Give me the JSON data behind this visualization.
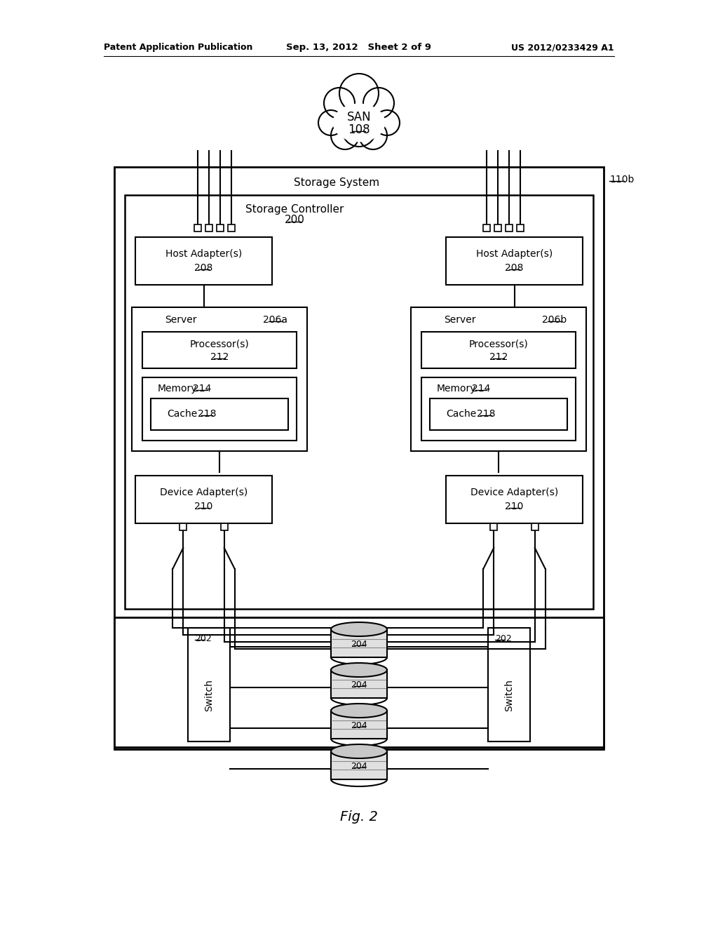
{
  "header_left": "Patent Application Publication",
  "header_mid": "Sep. 13, 2012   Sheet 2 of 9",
  "header_right": "US 2012/0233429 A1",
  "fig_label": "Fig. 2",
  "san_label": "SAN",
  "san_ref": "108",
  "storage_system_label": "Storage System",
  "storage_system_ref": "110b",
  "storage_controller_label": "Storage Controller",
  "storage_controller_ref": "200",
  "host_adapter_label": "Host Adapter(s)",
  "host_adapter_ref": "208",
  "server_left_label": "Server",
  "server_left_ref": "206a",
  "server_right_label": "Server",
  "server_right_ref": "206b",
  "processor_label": "Processor(s)",
  "processor_ref": "212",
  "memory_label": "Memory",
  "memory_ref": "214",
  "cache_label": "Cache",
  "cache_ref": "218",
  "device_adapter_label": "Device Adapter(s)",
  "device_adapter_ref": "210",
  "switch_ref": "202",
  "switch_label": "Switch",
  "disk_ref": "204",
  "bg_color": "#ffffff",
  "line_color": "#000000",
  "text_color": "#000000"
}
